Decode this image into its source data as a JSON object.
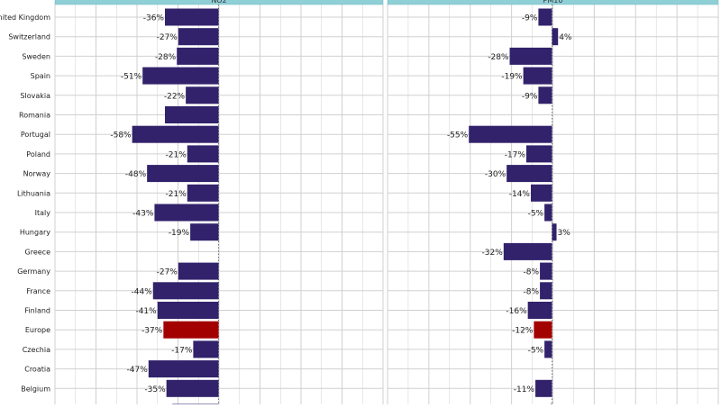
{
  "chart_data": {
    "type": "bar",
    "orientation": "horizontal",
    "categories": [
      "United Kingdom",
      "Switzerland",
      "Sweden",
      "Spain",
      "Slovakia",
      "Romania",
      "Portugal",
      "Poland",
      "Norway",
      "Lithuania",
      "Italy",
      "Hungary",
      "Greece",
      "Germany",
      "France",
      "Finland",
      "Europe",
      "Czechia",
      "Croatia",
      "Belgium"
    ],
    "panels": [
      {
        "title": "NO2",
        "values": [
          -36,
          -27,
          -28,
          -51,
          -22,
          -36,
          -58,
          -21,
          -48,
          -21,
          -43,
          -19,
          null,
          -27,
          -44,
          -41,
          -37,
          -17,
          -47,
          -35
        ],
        "labels": [
          "-36%",
          "-27%",
          "-28%",
          "-51%",
          "-22%",
          "",
          "-58%",
          "-21%",
          "-48%",
          "-21%",
          "-43%",
          "-19%",
          "",
          "-27%",
          "-44%",
          "-41%",
          "-37%",
          "-17%",
          "-47%",
          "-35%"
        ],
        "partial_bottom_value": -31
      },
      {
        "title": "PM10",
        "values": [
          -9,
          4,
          -28,
          -19,
          -9,
          null,
          -55,
          -17,
          -30,
          -14,
          -5,
          3,
          -32,
          -8,
          -8,
          -16,
          -12,
          -5,
          null,
          -11
        ],
        "labels": [
          "-9%",
          "4%",
          "-28%",
          "-19%",
          "-9%",
          "",
          "-55%",
          "-17%",
          "-30%",
          "-14%",
          "-5%",
          "3%",
          "-32%",
          "-8%",
          "-8%",
          "-16%",
          "-12%",
          "-5%",
          "",
          "-11%"
        ],
        "partial_bottom_value": -1
      }
    ],
    "highlight_category": "Europe",
    "colors": {
      "bar": "#32226b",
      "highlight": "#a30000",
      "strip": "#8fcfd6",
      "grid": "#d0d0d0",
      "text": "#222222",
      "zero_line": "#555555"
    },
    "grid": true,
    "zero_line": "dotted"
  }
}
